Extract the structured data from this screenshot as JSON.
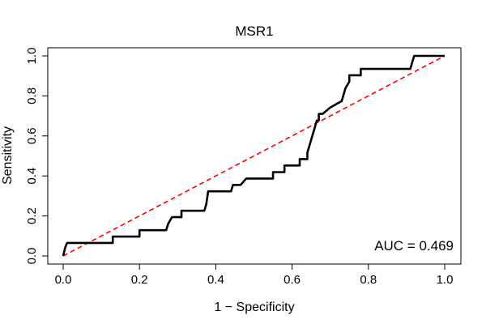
{
  "chart_data": {
    "type": "line",
    "title": "MSR1",
    "xlabel": "1 − Specificity",
    "ylabel": "Sensitivity",
    "xlim": [
      0,
      1
    ],
    "ylim": [
      0,
      1
    ],
    "x_ticks": [
      "0.0",
      "0.2",
      "0.4",
      "0.6",
      "0.8",
      "1.0"
    ],
    "y_ticks": [
      "0.0",
      "0.2",
      "0.4",
      "0.6",
      "0.8",
      "1.0"
    ],
    "annotation": "AUC = 0.469",
    "series": [
      {
        "name": "ROC curve",
        "color": "#000000",
        "style": "solid",
        "x": [
          0.0,
          0.005,
          0.01,
          0.13,
          0.13,
          0.2,
          0.2,
          0.27,
          0.275,
          0.285,
          0.31,
          0.31,
          0.37,
          0.375,
          0.38,
          0.44,
          0.445,
          0.46,
          0.465,
          0.48,
          0.55,
          0.55,
          0.58,
          0.58,
          0.6,
          0.62,
          0.62,
          0.64,
          0.64,
          0.645,
          0.65,
          0.655,
          0.66,
          0.665,
          0.67,
          0.67,
          0.68,
          0.7,
          0.7,
          0.73,
          0.735,
          0.74,
          0.75,
          0.75,
          0.78,
          0.78,
          0.91,
          0.915,
          0.92,
          1.0
        ],
        "y": [
          0.0,
          0.04,
          0.065,
          0.065,
          0.097,
          0.097,
          0.129,
          0.129,
          0.16,
          0.194,
          0.194,
          0.226,
          0.226,
          0.258,
          0.323,
          0.323,
          0.355,
          0.355,
          0.355,
          0.387,
          0.387,
          0.419,
          0.419,
          0.452,
          0.452,
          0.452,
          0.484,
          0.484,
          0.516,
          0.548,
          0.581,
          0.613,
          0.645,
          0.677,
          0.677,
          0.71,
          0.71,
          0.742,
          0.742,
          0.774,
          0.806,
          0.839,
          0.871,
          0.903,
          0.903,
          0.935,
          0.935,
          0.968,
          1.0,
          1.0
        ]
      },
      {
        "name": "Reference line",
        "color": "#ff0000",
        "style": "dashed",
        "x": [
          0,
          1
        ],
        "y": [
          0,
          1
        ]
      }
    ]
  }
}
